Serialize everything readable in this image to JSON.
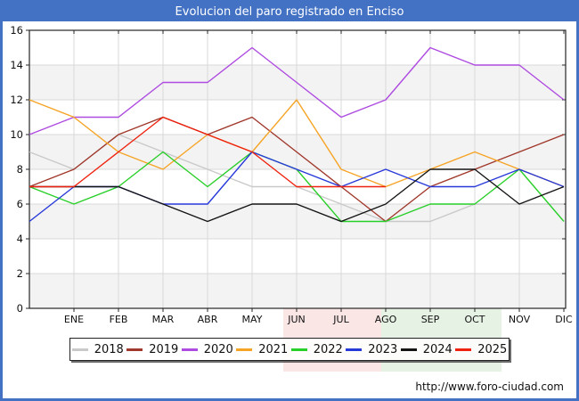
{
  "window": {
    "border_color": "#4372c4"
  },
  "header": {
    "title": "Evolucion del paro registrado en Enciso",
    "bg": "#4372c4",
    "text_color": "#ffffff"
  },
  "footer": {
    "url": "http://www.foro-ciudad.com"
  },
  "watermark": {
    "left_color": "rgba(235,140,140,0.22)",
    "right_color": "rgba(140,195,130,0.22)"
  },
  "chart_data": {
    "type": "line",
    "title": "Evolucion del paro registrado en Enciso",
    "x_tick_labels": [
      "ENE",
      "FEB",
      "MAR",
      "ABR",
      "MAY",
      "JUN",
      "JUL",
      "AGO",
      "SEP",
      "OCT",
      "NOV",
      "DIC"
    ],
    "points_per_series": "13 points: leading value drawn on the y-axis + one point per month ENE-DIC; series 2025 ends at AGO",
    "ylim": [
      0,
      16
    ],
    "y_ticks": [
      0,
      2,
      4,
      6,
      8,
      10,
      12,
      14,
      16
    ],
    "grid": true,
    "legend_position": "bottom",
    "series": [
      {
        "name": "2018",
        "color": "#c9c9c9",
        "values": [
          9,
          8,
          10,
          9,
          8,
          7,
          7,
          6,
          5,
          5,
          6,
          6,
          6
        ]
      },
      {
        "name": "2019",
        "color": "#a0382b",
        "values": [
          7,
          8,
          10,
          11,
          10,
          11,
          9,
          7,
          5,
          7,
          8,
          9,
          10
        ]
      },
      {
        "name": "2020",
        "color": "#ae4be0",
        "values": [
          10,
          11,
          11,
          13,
          13,
          15,
          13,
          11,
          12,
          15,
          14,
          14,
          12
        ]
      },
      {
        "name": "2021",
        "color": "#f6a426",
        "values": [
          12,
          11,
          9,
          8,
          10,
          9,
          12,
          8,
          7,
          8,
          9,
          8,
          7
        ]
      },
      {
        "name": "2022",
        "color": "#29cf29",
        "values": [
          7,
          6,
          7,
          9,
          7,
          9,
          8,
          5,
          5,
          6,
          6,
          8,
          5
        ]
      },
      {
        "name": "2023",
        "color": "#2839d9",
        "values": [
          5,
          7,
          7,
          6,
          6,
          9,
          8,
          7,
          8,
          7,
          7,
          8,
          7
        ]
      },
      {
        "name": "2024",
        "color": "#141414",
        "values": [
          7,
          7,
          7,
          6,
          5,
          6,
          6,
          5,
          6,
          8,
          8,
          6,
          7
        ]
      },
      {
        "name": "2025",
        "color": "#ee220f",
        "values": [
          7,
          7,
          9,
          11,
          10,
          9,
          7,
          7,
          7
        ]
      }
    ],
    "axis_color": "#262626",
    "gridline_color": "#d9d9d9",
    "band_color": "#f3f3f3"
  }
}
